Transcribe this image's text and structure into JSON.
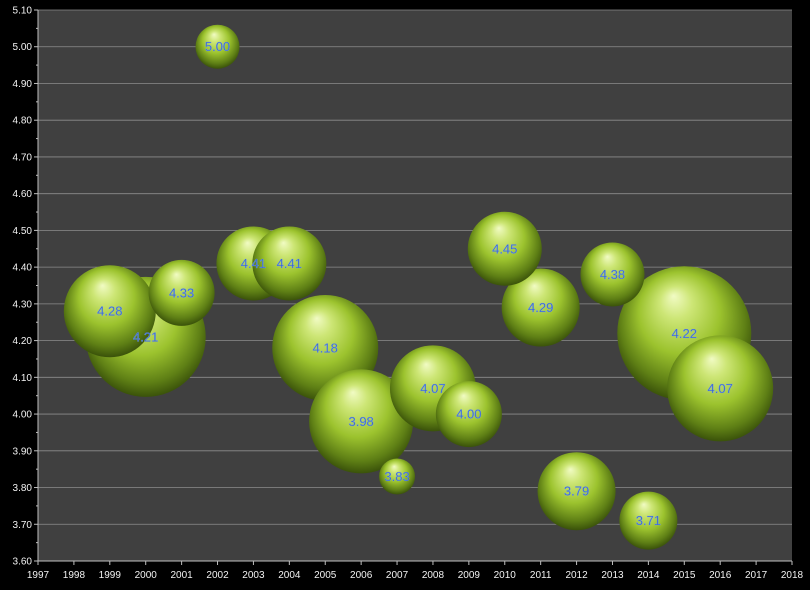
{
  "chart_data": {
    "type": "bubble",
    "title": "",
    "xlabel": "",
    "ylabel": "",
    "xlim": [
      1997,
      2018
    ],
    "ylim": [
      3.6,
      5.1
    ],
    "x_ticks": [
      "1997",
      "1998",
      "1999",
      "2000",
      "2001",
      "2002",
      "2003",
      "2004",
      "2005",
      "2006",
      "2007",
      "2008",
      "2009",
      "2010",
      "2011",
      "2012",
      "2013",
      "2014",
      "2015",
      "2016",
      "2017",
      "2018"
    ],
    "y_ticks": [
      "3.60",
      "3.70",
      "3.80",
      "3.90",
      "4.00",
      "4.10",
      "4.20",
      "4.30",
      "4.40",
      "4.50",
      "4.60",
      "4.70",
      "4.80",
      "4.90",
      "5.00",
      "5.10"
    ],
    "grid": "horizontal",
    "legend": "none",
    "colors": {
      "background": "#000000",
      "plot_area": "#404040",
      "gridline": "#8c8c8c",
      "axis": "#bfbfbf",
      "bubble_light": "#e6f5a3",
      "bubble_mid": "#9cc32e",
      "bubble_dark": "#3f5a0b",
      "label_text": "#3a66c8"
    },
    "series": [
      {
        "points": [
          {
            "x": 1999,
            "y": 4.28,
            "label": "4.28",
            "size": 46
          },
          {
            "x": 2000,
            "y": 4.21,
            "label": "4.21",
            "size": 60
          },
          {
            "x": 2001,
            "y": 4.33,
            "label": "4.33",
            "size": 33
          },
          {
            "x": 2002,
            "y": 5.0,
            "label": "5.00",
            "size": 22
          },
          {
            "x": 2003,
            "y": 4.41,
            "label": "4.41",
            "size": 37
          },
          {
            "x": 2004,
            "y": 4.41,
            "label": "4.41",
            "size": 37
          },
          {
            "x": 2005,
            "y": 4.18,
            "label": "4.18",
            "size": 53
          },
          {
            "x": 2006,
            "y": 3.98,
            "label": "3.98",
            "size": 52
          },
          {
            "x": 2007,
            "y": 3.83,
            "label": "3.83",
            "size": 18
          },
          {
            "x": 2008,
            "y": 4.07,
            "label": "4.07",
            "size": 43
          },
          {
            "x": 2009,
            "y": 4.0,
            "label": "4.00",
            "size": 33
          },
          {
            "x": 2010,
            "y": 4.45,
            "label": "4.45",
            "size": 37
          },
          {
            "x": 2011,
            "y": 4.29,
            "label": "4.29",
            "size": 39
          },
          {
            "x": 2012,
            "y": 3.79,
            "label": "3.79",
            "size": 39
          },
          {
            "x": 2013,
            "y": 4.38,
            "label": "4.38",
            "size": 32
          },
          {
            "x": 2014,
            "y": 3.71,
            "label": "3.71",
            "size": 29
          },
          {
            "x": 2015,
            "y": 4.22,
            "label": "4.22",
            "size": 67
          },
          {
            "x": 2016,
            "y": 4.07,
            "label": "4.07",
            "size": 53
          }
        ]
      }
    ]
  }
}
